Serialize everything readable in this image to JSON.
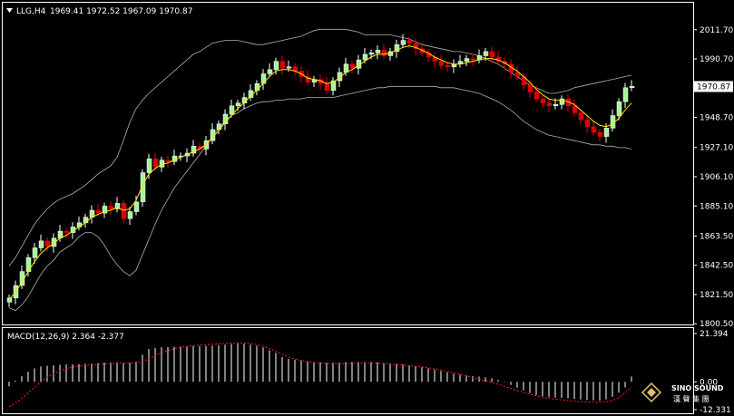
{
  "header": {
    "symbol": "LLG,H4",
    "ohlc": "1969.41 1972.52 1967.09 1970.87"
  },
  "macd_header": "MACD(12,26,9) 2.364 -2.377",
  "watermark": {
    "brand": "SINO SOUND",
    "sub": "漢 聲 集 團"
  },
  "colors": {
    "background": "#000000",
    "frame": "#ffffff",
    "bull": "#ffffff",
    "bull_body": "#a6f59a",
    "bear": "#e00000",
    "ma": "#ffe500",
    "band": "#b0b0b0",
    "macd_bar": "#ffffff",
    "signal": "#ff2020",
    "last_price_box": "#ffffff"
  },
  "chart_data": [
    {
      "type": "candlestick",
      "title": "LLG,H4",
      "ylim": [
        1800.0,
        2020.0
      ],
      "y_ticks": [
        "2011.70",
        "1990.70",
        "1969.70",
        "1948.70",
        "1927.10",
        "1906.10",
        "1885.10",
        "1863.50",
        "1842.50",
        "1821.50",
        "1800.50"
      ],
      "last_price": "1970.87",
      "close": [
        1819,
        1828,
        1838,
        1848,
        1855,
        1860,
        1856,
        1862,
        1867,
        1866,
        1870,
        1873,
        1877,
        1882,
        1880,
        1885,
        1883,
        1887,
        1876,
        1881,
        1888,
        1909,
        1919,
        1913,
        1918,
        1917,
        1921,
        1921,
        1923,
        1928,
        1926,
        1932,
        1940,
        1944,
        1951,
        1957,
        1959,
        1963,
        1968,
        1973,
        1980,
        1983,
        1989,
        1984,
        1985,
        1982,
        1978,
        1974,
        1976,
        1973,
        1968,
        1975,
        1981,
        1987,
        1984,
        1990,
        1994,
        1995,
        1997,
        1993,
        1996,
        2001,
        2004,
        2002,
        1998,
        1995,
        1992,
        1989,
        1986,
        1985,
        1987,
        1989,
        1991,
        1990,
        1993,
        1996,
        1992,
        1989,
        1987,
        1981,
        1978,
        1972,
        1967,
        1962,
        1959,
        1957,
        1958,
        1962,
        1957,
        1952,
        1947,
        1942,
        1938,
        1935,
        1941,
        1950,
        1960,
        1970,
        1971
      ],
      "ma": [
        1818,
        1823,
        1830,
        1838,
        1845,
        1851,
        1855,
        1858,
        1862,
        1864,
        1867,
        1870,
        1873,
        1877,
        1879,
        1881,
        1882,
        1884,
        1882,
        1883,
        1889,
        1900,
        1908,
        1912,
        1915,
        1916,
        1918,
        1920,
        1922,
        1924,
        1926,
        1929,
        1934,
        1939,
        1945,
        1950,
        1955,
        1959,
        1964,
        1968,
        1973,
        1978,
        1982,
        1983,
        1983,
        1982,
        1980,
        1977,
        1976,
        1975,
        1973,
        1974,
        1977,
        1981,
        1983,
        1986,
        1989,
        1992,
        1994,
        1994,
        1995,
        1997,
        1999,
        2000,
        1999,
        1997,
        1995,
        1992,
        1990,
        1988,
        1987,
        1987,
        1988,
        1989,
        1990,
        1991,
        1991,
        1990,
        1988,
        1985,
        1982,
        1978,
        1974,
        1969,
        1965,
        1962,
        1961,
        1961,
        1960,
        1958,
        1954,
        1950,
        1946,
        1943,
        1942,
        1944,
        1948,
        1954,
        1959
      ],
      "band_upper": [
        1842,
        1848,
        1856,
        1864,
        1872,
        1878,
        1883,
        1887,
        1890,
        1892,
        1894,
        1897,
        1900,
        1904,
        1908,
        1911,
        1914,
        1920,
        1932,
        1945,
        1955,
        1961,
        1966,
        1970,
        1974,
        1978,
        1982,
        1986,
        1990,
        1994,
        1996,
        1999,
        2002,
        2003,
        2004,
        2004,
        2004,
        2003,
        2002,
        2001,
        2001,
        2002,
        2003,
        2004,
        2005,
        2006,
        2007,
        2009,
        2011,
        2012,
        2012,
        2012,
        2012,
        2012,
        2011,
        2010,
        2008,
        2008,
        2008,
        2008,
        2008,
        2007,
        2006,
        2005,
        2003,
        2001,
        2000,
        1999,
        1998,
        1997,
        1996,
        1996,
        1995,
        1994,
        1993,
        1991,
        1989,
        1987,
        1984,
        1981,
        1978,
        1975,
        1972,
        1970,
        1968,
        1966,
        1966,
        1967,
        1968,
        1970,
        1971,
        1972,
        1973,
        1974,
        1975,
        1976,
        1977,
        1978,
        1979
      ],
      "band_lower": [
        1812,
        1810,
        1814,
        1820,
        1828,
        1836,
        1842,
        1846,
        1852,
        1855,
        1858,
        1863,
        1866,
        1866,
        1863,
        1857,
        1849,
        1843,
        1838,
        1835,
        1839,
        1850,
        1861,
        1872,
        1882,
        1890,
        1898,
        1904,
        1910,
        1916,
        1922,
        1928,
        1935,
        1941,
        1946,
        1950,
        1952,
        1955,
        1957,
        1959,
        1960,
        1960,
        1961,
        1961,
        1962,
        1962,
        1962,
        1963,
        1963,
        1963,
        1963,
        1963,
        1964,
        1965,
        1966,
        1967,
        1968,
        1969,
        1970,
        1970,
        1971,
        1971,
        1971,
        1971,
        1971,
        1971,
        1971,
        1971,
        1970,
        1970,
        1970,
        1969,
        1968,
        1967,
        1966,
        1964,
        1962,
        1960,
        1957,
        1954,
        1950,
        1946,
        1943,
        1940,
        1938,
        1936,
        1935,
        1934,
        1933,
        1932,
        1931,
        1930,
        1929,
        1929,
        1928,
        1928,
        1927,
        1927,
        1926
      ]
    },
    {
      "type": "bar",
      "title": "MACD(12,26,9)",
      "ylim": [
        -12.331,
        21.394
      ],
      "y_ticks": [
        "21.394",
        "0.00",
        "-12.331"
      ],
      "macd": [
        -2.0,
        0.5,
        2.5,
        4.5,
        6.0,
        6.8,
        7.1,
        7.3,
        7.6,
        7.7,
        7.8,
        7.9,
        8.0,
        8.1,
        8.3,
        8.5,
        8.6,
        8.7,
        8.2,
        8.4,
        8.9,
        12.0,
        14.5,
        15.0,
        15.3,
        15.4,
        15.5,
        15.6,
        15.7,
        15.8,
        15.8,
        15.9,
        16.0,
        16.2,
        16.5,
        16.8,
        17.0,
        16.9,
        16.5,
        16.0,
        15.2,
        14.0,
        12.8,
        11.0,
        10.2,
        9.8,
        9.4,
        9.1,
        8.8,
        8.6,
        8.4,
        8.5,
        8.6,
        8.7,
        8.7,
        8.8,
        8.8,
        8.7,
        8.6,
        8.4,
        8.2,
        7.9,
        7.6,
        7.3,
        7.0,
        6.5,
        6.0,
        5.4,
        4.8,
        4.2,
        3.6,
        3.2,
        2.8,
        2.5,
        2.3,
        2.0,
        1.6,
        0.8,
        -0.2,
        -1.4,
        -2.6,
        -3.8,
        -4.9,
        -5.8,
        -6.4,
        -6.8,
        -7.0,
        -7.1,
        -7.3,
        -7.6,
        -7.8,
        -8.0,
        -8.2,
        -8.4,
        -7.8,
        -6.6,
        -4.8,
        -2.5,
        2.364
      ],
      "signal": [
        -11.0,
        -9.5,
        -7.5,
        -5.0,
        -2.5,
        0.0,
        2.0,
        3.5,
        4.8,
        5.8,
        6.5,
        7.0,
        7.3,
        7.5,
        7.7,
        7.9,
        8.1,
        8.2,
        8.3,
        8.3,
        8.4,
        9.0,
        10.2,
        11.5,
        12.8,
        13.9,
        14.7,
        15.3,
        15.7,
        16.0,
        16.2,
        16.4,
        16.6,
        16.8,
        17.0,
        17.2,
        17.3,
        17.2,
        17.0,
        16.5,
        15.8,
        14.8,
        13.5,
        12.2,
        11.0,
        10.1,
        9.5,
        9.0,
        8.6,
        8.3,
        8.1,
        8.0,
        8.0,
        8.1,
        8.2,
        8.3,
        8.3,
        8.3,
        8.2,
        8.1,
        7.9,
        7.7,
        7.5,
        7.2,
        6.9,
        6.6,
        6.2,
        5.7,
        5.2,
        4.6,
        4.0,
        3.3,
        2.6,
        1.9,
        1.2,
        0.5,
        -0.3,
        -1.1,
        -2.0,
        -2.9,
        -3.8,
        -4.7,
        -5.5,
        -6.2,
        -6.8,
        -7.3,
        -7.7,
        -8.0,
        -8.3,
        -8.6,
        -8.8,
        -9.0,
        -9.1,
        -9.1,
        -8.9,
        -8.3,
        -7.0,
        -5.0,
        -2.377
      ]
    }
  ]
}
